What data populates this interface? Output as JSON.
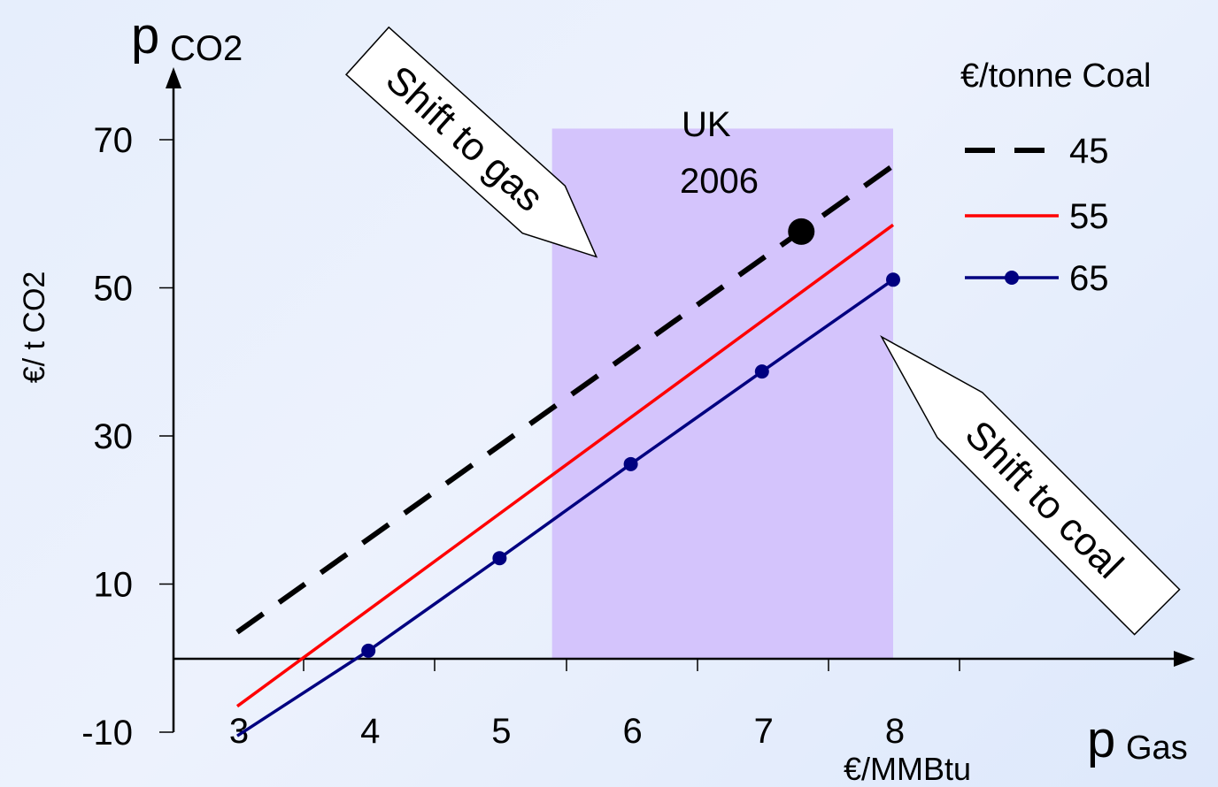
{
  "chart_data": {
    "type": "line",
    "y_axis": {
      "symbol": "p",
      "subscript": "CO2",
      "label": "€/ t CO2",
      "ticks": [
        70,
        50,
        30,
        10,
        -10
      ],
      "range": [
        -10,
        70
      ]
    },
    "x_axis": {
      "symbol": "p",
      "subscript": "Gas",
      "unit": "€/MMBtu",
      "ticks": [
        3,
        4,
        5,
        6,
        7,
        8
      ],
      "range": [
        3,
        8
      ]
    },
    "legend": {
      "title": "€/tonne Coal",
      "placement": "top-right"
    },
    "series": [
      {
        "name": "45",
        "style": "dashed",
        "color": "#000000",
        "x": [
          3,
          8
        ],
        "y": [
          3.5,
          66.5
        ]
      },
      {
        "name": "55",
        "style": "solid",
        "color": "#ff0000",
        "x": [
          3,
          8
        ],
        "y": [
          -6.5,
          58.5
        ]
      },
      {
        "name": "65",
        "style": "solid-markers",
        "color": "#000080",
        "x": [
          3,
          4,
          5,
          6,
          7,
          8
        ],
        "y": [
          -10.5,
          1.0,
          13.5,
          26.2,
          38.7,
          51.1
        ]
      }
    ],
    "shaded_region": {
      "label_line1": "UK",
      "label_line2": "2006",
      "x": [
        5.4,
        8
      ],
      "y": [
        0,
        71.5
      ],
      "color": "#d4c4fc"
    },
    "highlight_point": {
      "x": 7.3,
      "y": 57.6,
      "color": "#000000"
    },
    "annotations": [
      {
        "text": "Shift to gas"
      },
      {
        "text": "Shift to coal"
      }
    ]
  }
}
